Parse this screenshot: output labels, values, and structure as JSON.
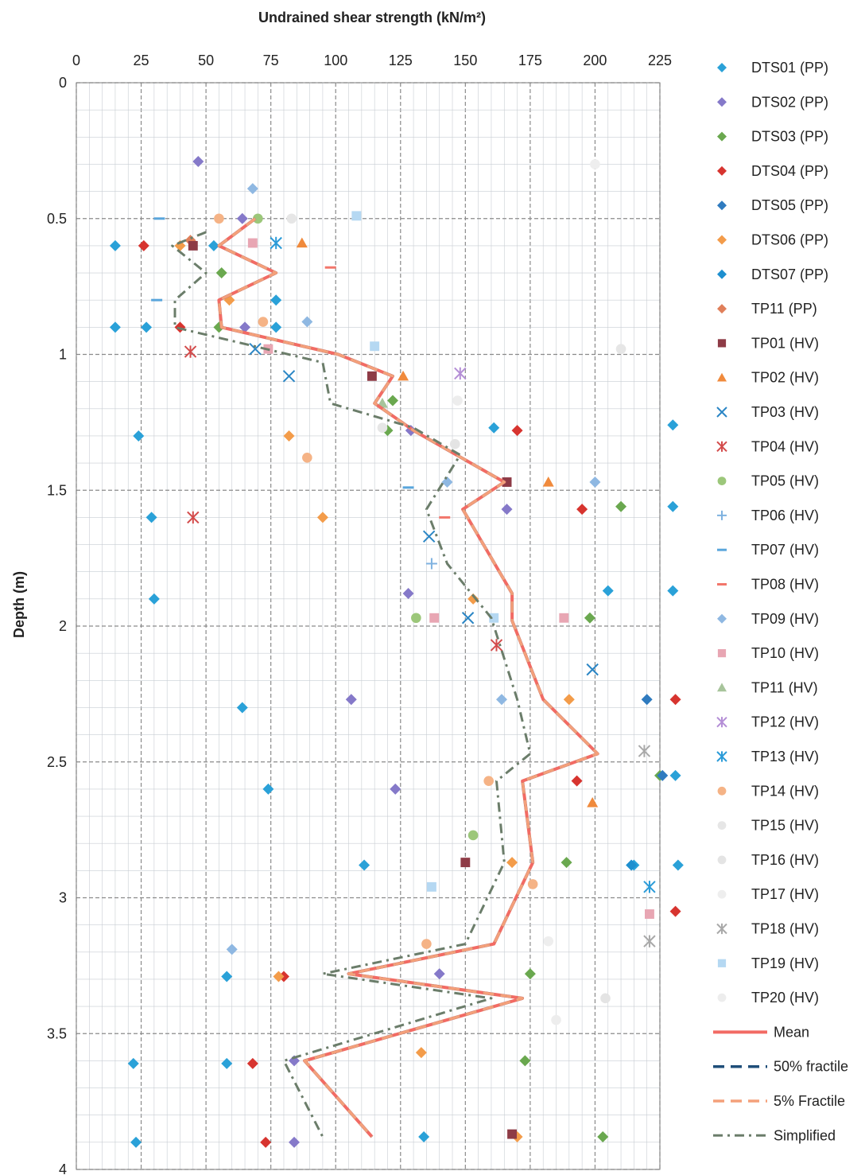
{
  "chart_data": {
    "type": "scatter",
    "xlabel": "Undrained shear strength (kN/m²)",
    "ylabel": "Depth (m)",
    "xlim": [
      0,
      225
    ],
    "ylim": [
      0,
      4
    ],
    "x_axis_position": "top",
    "y_inverted": true,
    "x_ticks": [
      "0",
      "25",
      "50",
      "75",
      "100",
      "125",
      "150",
      "175",
      "200",
      "225"
    ],
    "y_ticks": [
      "0",
      "0.5",
      "1",
      "1.5",
      "2",
      "2.5",
      "3",
      "3.5",
      "4"
    ],
    "grid": true,
    "legend_position": "right",
    "series": [
      {
        "name": "DTS01 (PP)",
        "marker": "diamond",
        "color": "#2aa1d8",
        "points": [
          [
            15,
            0.6
          ],
          [
            53,
            0.6
          ],
          [
            77,
            0.8
          ],
          [
            15,
            0.9
          ],
          [
            27,
            0.9
          ],
          [
            77,
            0.9
          ],
          [
            24,
            1.3
          ],
          [
            29,
            1.6
          ],
          [
            30,
            1.9
          ],
          [
            64,
            2.3
          ],
          [
            74,
            2.6
          ],
          [
            111,
            2.88
          ],
          [
            58,
            3.29
          ],
          [
            22,
            3.61
          ],
          [
            58,
            3.61
          ],
          [
            23,
            3.9
          ],
          [
            134,
            3.88
          ],
          [
            161,
            1.27
          ],
          [
            205,
            1.87
          ],
          [
            230,
            1.26
          ],
          [
            230,
            1.56
          ],
          [
            230,
            1.87
          ],
          [
            231,
            2.55
          ],
          [
            232,
            2.88
          ],
          [
            215,
            2.88
          ]
        ]
      },
      {
        "name": "DTS02 (PP)",
        "marker": "diamond",
        "color": "#8579c9",
        "points": [
          [
            47,
            0.29
          ],
          [
            64,
            0.5
          ],
          [
            65,
            0.9
          ],
          [
            129,
            1.28
          ],
          [
            128,
            1.88
          ],
          [
            106,
            2.27
          ],
          [
            123,
            2.6
          ],
          [
            140,
            3.28
          ],
          [
            84,
            3.6
          ],
          [
            84,
            3.9
          ],
          [
            166,
            1.57
          ]
        ]
      },
      {
        "name": "DTS03 (PP)",
        "marker": "diamond",
        "color": "#6aa84f",
        "points": [
          [
            56,
            0.7
          ],
          [
            55,
            0.9
          ],
          [
            120,
            1.28
          ],
          [
            122,
            1.17
          ],
          [
            175,
            3.28
          ],
          [
            173,
            3.6
          ],
          [
            203,
            3.88
          ],
          [
            210,
            1.56
          ],
          [
            198,
            1.97
          ],
          [
            189,
            2.87
          ],
          [
            225,
            2.55
          ]
        ]
      },
      {
        "name": "DTS04 (PP)",
        "marker": "diamond",
        "color": "#d7342f",
        "points": [
          [
            26,
            0.6
          ],
          [
            40,
            0.9
          ],
          [
            80,
            3.29
          ],
          [
            68,
            3.61
          ],
          [
            73,
            3.9
          ],
          [
            170,
            1.28
          ],
          [
            195,
            1.57
          ],
          [
            193,
            2.57
          ],
          [
            231,
            2.27
          ],
          [
            231,
            3.05
          ]
        ]
      },
      {
        "name": "DTS05 (PP)",
        "marker": "diamond",
        "color": "#2f7bbf",
        "points": [
          [
            220,
            2.27
          ],
          [
            226,
            2.55
          ]
        ]
      },
      {
        "name": "DTS06 (PP)",
        "marker": "diamond",
        "color": "#f39c4a",
        "points": [
          [
            40,
            0.6
          ],
          [
            59,
            0.8
          ],
          [
            82,
            1.3
          ],
          [
            95,
            1.6
          ],
          [
            153,
            1.9
          ],
          [
            190,
            2.27
          ],
          [
            168,
            2.87
          ],
          [
            133,
            3.57
          ],
          [
            170,
            3.88
          ],
          [
            78,
            3.29
          ]
        ]
      },
      {
        "name": "DTS07 (PP)",
        "marker": "diamond",
        "color": "#1e8fcf",
        "points": [
          [
            214,
            2.88
          ]
        ]
      },
      {
        "name": "TP11 (PP)",
        "marker": "diamond",
        "color": "#e07f5a",
        "points": [
          [
            44,
            0.58
          ]
        ]
      },
      {
        "name": "TP01 (HV)",
        "marker": "square",
        "color": "#8e3b46",
        "points": [
          [
            45,
            0.6
          ],
          [
            114,
            1.08
          ],
          [
            166,
            1.47
          ],
          [
            150,
            2.87
          ],
          [
            168,
            3.87
          ]
        ]
      },
      {
        "name": "TP02 (HV)",
        "marker": "triangle",
        "color": "#f08a3c",
        "points": [
          [
            87,
            0.59
          ],
          [
            126,
            1.08
          ],
          [
            182,
            1.47
          ],
          [
            199,
            2.65
          ]
        ]
      },
      {
        "name": "TP03 (HV)",
        "marker": "x",
        "color": "#2b86c5",
        "points": [
          [
            82,
            1.08
          ],
          [
            136,
            1.67
          ],
          [
            151,
            1.97
          ],
          [
            199,
            2.16
          ],
          [
            69,
            0.98
          ]
        ]
      },
      {
        "name": "TP04 (HV)",
        "marker": "star",
        "color": "#d34b4b",
        "points": [
          [
            44,
            0.99
          ],
          [
            45,
            1.6
          ],
          [
            162,
            2.07
          ]
        ]
      },
      {
        "name": "TP05 (HV)",
        "marker": "circle",
        "color": "#9cc77a",
        "points": [
          [
            70,
            0.5
          ],
          [
            153,
            2.77
          ],
          [
            131,
            1.97
          ]
        ]
      },
      {
        "name": "TP06 (HV)",
        "marker": "plus",
        "color": "#7fb2e0",
        "points": [
          [
            137,
            1.77
          ]
        ]
      },
      {
        "name": "TP07 (HV)",
        "marker": "dash",
        "color": "#5aa6dc",
        "points": [
          [
            32,
            0.5
          ],
          [
            31,
            0.8
          ],
          [
            128,
            1.49
          ]
        ]
      },
      {
        "name": "TP08 (HV)",
        "marker": "dash",
        "color": "#f2766b",
        "points": [
          [
            98,
            0.68
          ],
          [
            142,
            1.6
          ]
        ]
      },
      {
        "name": "TP09 (HV)",
        "marker": "diamond",
        "color": "#8fb8e2",
        "points": [
          [
            68,
            0.39
          ],
          [
            89,
            0.88
          ],
          [
            164,
            2.27
          ],
          [
            200,
            1.47
          ],
          [
            143,
            1.47
          ],
          [
            60,
            3.19
          ]
        ]
      },
      {
        "name": "TP10 (HV)",
        "marker": "square",
        "color": "#e8a6b3",
        "points": [
          [
            68,
            0.59
          ],
          [
            74,
            0.98
          ],
          [
            138,
            1.97
          ],
          [
            188,
            1.97
          ],
          [
            221,
            3.06
          ]
        ]
      },
      {
        "name": "TP11 (HV)",
        "marker": "triangle",
        "color": "#a7c49b",
        "points": [
          [
            118,
            1.18
          ]
        ]
      },
      {
        "name": "TP12 (HV)",
        "marker": "star",
        "color": "#b48ed6",
        "points": [
          [
            148,
            1.07
          ]
        ]
      },
      {
        "name": "TP13 (HV)",
        "marker": "star",
        "color": "#2b9bd8",
        "points": [
          [
            77,
            0.59
          ],
          [
            221,
            2.96
          ]
        ]
      },
      {
        "name": "TP14 (HV)",
        "marker": "circle",
        "color": "#f5b386",
        "points": [
          [
            55,
            0.5
          ],
          [
            72,
            0.88
          ],
          [
            89,
            1.38
          ],
          [
            135,
            3.17
          ],
          [
            176,
            2.95
          ],
          [
            159,
            2.57
          ]
        ]
      },
      {
        "name": "TP15 (HV)",
        "marker": "circle",
        "color": "#e6e6e6",
        "points": [
          [
            83,
            0.5
          ],
          [
            118,
            1.27
          ],
          [
            210,
            0.98
          ]
        ]
      },
      {
        "name": "TP16 (HV)",
        "marker": "circle",
        "color": "#e4e4e4",
        "points": [
          [
            146,
            1.33
          ],
          [
            204,
            3.37
          ]
        ]
      },
      {
        "name": "TP17 (HV)",
        "marker": "circle",
        "color": "#eeeeee",
        "points": [
          [
            200,
            0.3
          ],
          [
            182,
            3.16
          ]
        ]
      },
      {
        "name": "TP18 (HV)",
        "marker": "star",
        "color": "#a9a9a9",
        "points": [
          [
            221,
            3.16
          ],
          [
            219,
            2.46
          ]
        ]
      },
      {
        "name": "TP19 (HV)",
        "marker": "square",
        "color": "#b5d8f2",
        "points": [
          [
            108,
            0.49
          ],
          [
            115,
            0.97
          ],
          [
            161,
            1.97
          ],
          [
            137,
            2.96
          ]
        ]
      },
      {
        "name": "TP20 (HV)",
        "marker": "circle",
        "color": "#ededed",
        "points": [
          [
            147,
            1.17
          ],
          [
            185,
            3.45
          ]
        ]
      },
      {
        "name": "Mean",
        "marker": "line",
        "color": "#f26b64",
        "points": [
          [
            69,
            0.5
          ],
          [
            55,
            0.6
          ],
          [
            77,
            0.7
          ],
          [
            55,
            0.8
          ],
          [
            56,
            0.9
          ],
          [
            101,
            1.0
          ],
          [
            122,
            1.08
          ],
          [
            115,
            1.18
          ],
          [
            130,
            1.28
          ],
          [
            165,
            1.47
          ],
          [
            149,
            1.57
          ],
          [
            168,
            1.88
          ],
          [
            168,
            1.98
          ],
          [
            180,
            2.27
          ],
          [
            201,
            2.47
          ],
          [
            172,
            2.57
          ],
          [
            176,
            2.87
          ],
          [
            161,
            3.17
          ],
          [
            105,
            3.28
          ],
          [
            172,
            3.37
          ],
          [
            88,
            3.6
          ],
          [
            114,
            3.88
          ]
        ]
      },
      {
        "name": "50% fractile",
        "marker": "dashed",
        "color": "#1f4e79",
        "points": [
          [
            69,
            0.5
          ],
          [
            55,
            0.6
          ],
          [
            77,
            0.7
          ],
          [
            55,
            0.8
          ],
          [
            56,
            0.9
          ],
          [
            101,
            1.0
          ],
          [
            122,
            1.08
          ],
          [
            115,
            1.18
          ],
          [
            130,
            1.28
          ],
          [
            165,
            1.47
          ],
          [
            149,
            1.57
          ],
          [
            168,
            1.88
          ],
          [
            168,
            1.98
          ],
          [
            180,
            2.27
          ],
          [
            201,
            2.47
          ],
          [
            172,
            2.57
          ],
          [
            176,
            2.87
          ],
          [
            161,
            3.17
          ],
          [
            105,
            3.28
          ],
          [
            172,
            3.37
          ],
          [
            88,
            3.6
          ],
          [
            114,
            3.88
          ]
        ]
      },
      {
        "name": "5% Fractile",
        "marker": "dashed",
        "color": "#f4a07a",
        "points": [
          [
            69,
            0.5
          ],
          [
            55,
            0.6
          ],
          [
            77,
            0.7
          ],
          [
            55,
            0.8
          ],
          [
            56,
            0.9
          ],
          [
            101,
            1.0
          ],
          [
            122,
            1.08
          ],
          [
            115,
            1.18
          ],
          [
            130,
            1.28
          ],
          [
            165,
            1.47
          ],
          [
            149,
            1.57
          ],
          [
            168,
            1.88
          ],
          [
            168,
            1.98
          ],
          [
            180,
            2.27
          ],
          [
            201,
            2.47
          ],
          [
            172,
            2.57
          ],
          [
            176,
            2.87
          ],
          [
            161,
            3.17
          ],
          [
            105,
            3.28
          ],
          [
            172,
            3.37
          ],
          [
            88,
            3.6
          ],
          [
            114,
            3.88
          ]
        ]
      },
      {
        "name": "Simplified",
        "marker": "dashdot",
        "color": "#6b7d6a",
        "points": [
          [
            50,
            0.55
          ],
          [
            37,
            0.6
          ],
          [
            50,
            0.7
          ],
          [
            38,
            0.8
          ],
          [
            38,
            0.9
          ],
          [
            95,
            1.03
          ],
          [
            98,
            1.18
          ],
          [
            130,
            1.27
          ],
          [
            148,
            1.37
          ],
          [
            135,
            1.57
          ],
          [
            143,
            1.77
          ],
          [
            160,
            1.97
          ],
          [
            170,
            2.27
          ],
          [
            175,
            2.47
          ],
          [
            162,
            2.57
          ],
          [
            165,
            2.87
          ],
          [
            150,
            3.17
          ],
          [
            95,
            3.28
          ],
          [
            160,
            3.37
          ],
          [
            80,
            3.6
          ],
          [
            95,
            3.88
          ]
        ]
      }
    ]
  }
}
